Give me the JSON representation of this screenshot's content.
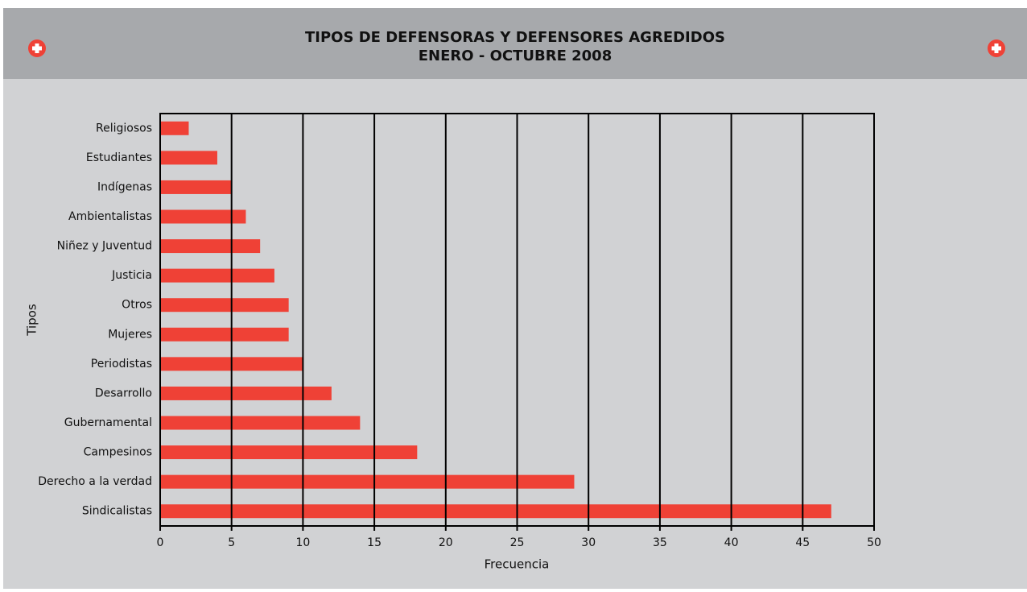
{
  "chart_data": {
    "type": "barh",
    "title": "TIPOS DE DEFENSORAS Y DEFENSORES AGREDIDOS",
    "subtitle": "ENERO - OCTUBRE 2008",
    "x_label": "Frecuencia",
    "y_label": "Tipos",
    "categories": [
      "Religiosos",
      "Estudiantes",
      "Indígenas",
      "Ambientalistas",
      "Niñez y Juventud",
      "Justicia",
      "Otros",
      "Mujeres",
      "Periodistas",
      "Desarrollo",
      "Gubernamental",
      "Campesinos",
      "Derecho a la verdad",
      "Sindicalistas"
    ],
    "values": [
      2,
      4,
      5,
      6,
      7,
      8,
      9,
      9,
      10,
      12,
      14,
      18,
      29,
      47
    ],
    "color": "#ef4136",
    "xlim": [
      0,
      50
    ],
    "xticks": [
      0,
      5,
      10,
      15,
      20,
      25,
      30,
      35,
      40,
      45,
      50
    ],
    "grid": true
  }
}
